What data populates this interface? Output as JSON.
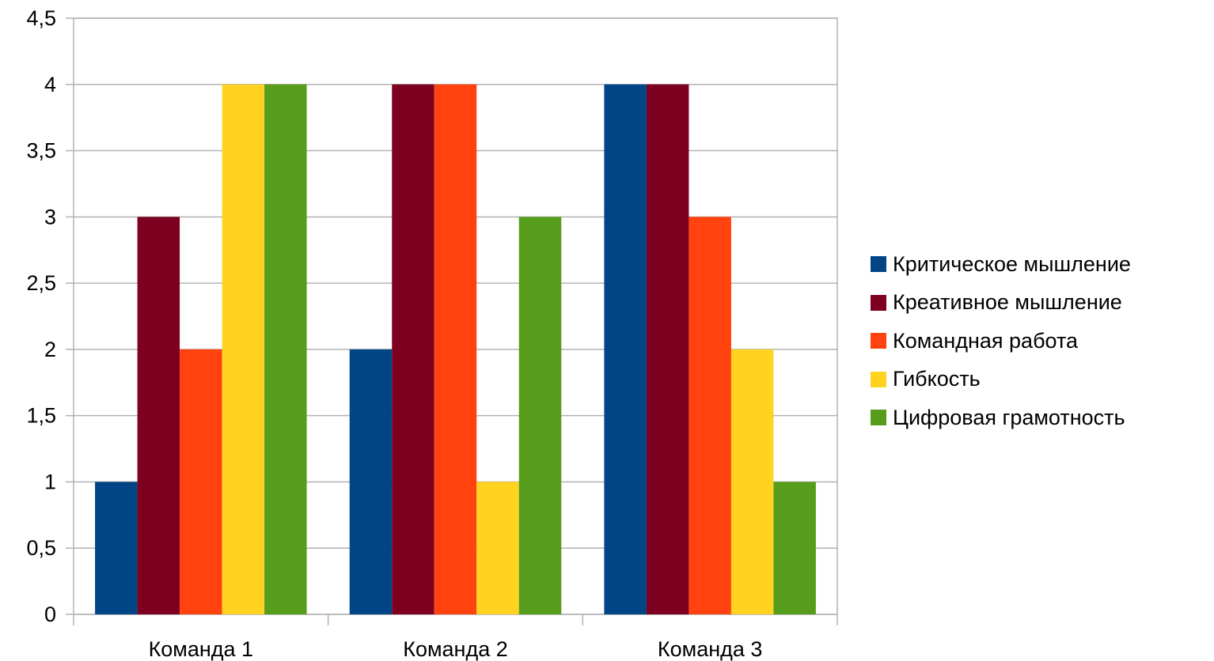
{
  "chart_data": {
    "type": "bar",
    "categories": [
      "Команда 1",
      "Команда 2",
      "Команда 3"
    ],
    "series": [
      {
        "name": "Критическое мышление",
        "color": "#004586",
        "values": [
          1,
          2,
          4
        ]
      },
      {
        "name": "Креативное мышление",
        "color": "#7e0021",
        "values": [
          3,
          4,
          4
        ]
      },
      {
        "name": "Командная работа",
        "color": "#ff420e",
        "values": [
          2,
          4,
          3
        ]
      },
      {
        "name": "Гибкость",
        "color": "#ffd320",
        "values": [
          4,
          1,
          2
        ]
      },
      {
        "name": "Цифровая грамотность",
        "color": "#579d1c",
        "values": [
          4,
          3,
          1
        ]
      }
    ],
    "ylim": [
      0,
      4.5
    ],
    "yticks": [
      "0",
      "0,5",
      "1",
      "1,5",
      "2",
      "2,5",
      "3",
      "3,5",
      "4",
      "4,5"
    ],
    "grid": true,
    "legend_position": "right"
  }
}
